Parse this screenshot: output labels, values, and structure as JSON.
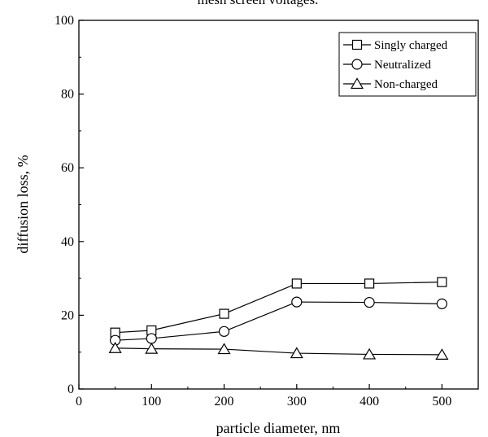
{
  "chart_data": {
    "type": "line",
    "title": "mesh screen voltages.",
    "xlabel": "particle diameter, nm",
    "ylabel": "diffusion loss, %",
    "xlim": [
      0,
      550
    ],
    "ylim": [
      0,
      100
    ],
    "xticks": [
      0,
      100,
      200,
      300,
      400,
      500
    ],
    "yticks": [
      0,
      20,
      40,
      60,
      80,
      100
    ],
    "grid": false,
    "legend_position": "top-right",
    "x": [
      50,
      100,
      200,
      300,
      400,
      500
    ],
    "series": [
      {
        "name": "Singly charged",
        "marker": "square",
        "values": [
          15.3,
          15.9,
          20.4,
          28.6,
          28.6,
          29.0
        ]
      },
      {
        "name": "Neutralized",
        "marker": "circle",
        "values": [
          13.2,
          13.7,
          15.6,
          23.6,
          23.5,
          23.1
        ]
      },
      {
        "name": "Non-charged",
        "marker": "triangle",
        "values": [
          11.1,
          10.9,
          10.8,
          9.7,
          9.4,
          9.3
        ]
      }
    ]
  }
}
